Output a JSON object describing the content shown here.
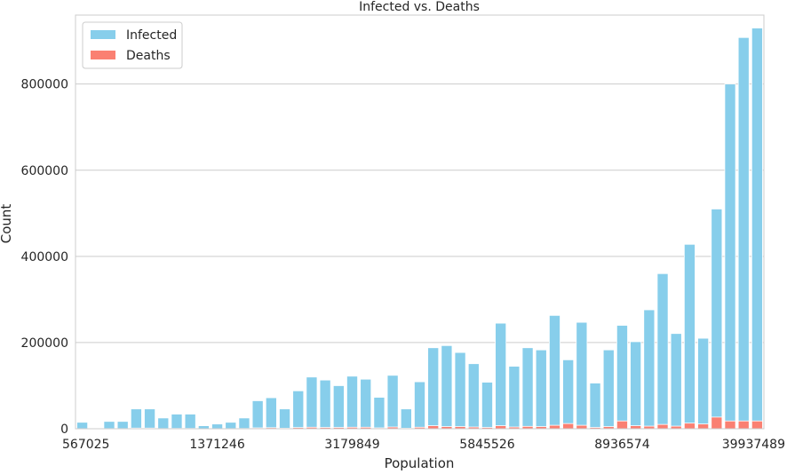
{
  "chart_data": {
    "type": "bar",
    "title": "Infected vs. Deaths",
    "xlabel": "Population",
    "ylabel": "Count",
    "ylim": [
      0,
      960000
    ],
    "yticks": [
      0,
      200000,
      400000,
      600000,
      800000
    ],
    "ytick_labels": [
      "0",
      "200000",
      "400000",
      "600000",
      "800000"
    ],
    "x_tick_labels": [
      {
        "index": 0,
        "label": "567025"
      },
      {
        "index": 10,
        "label": "1371246"
      },
      {
        "index": 20,
        "label": "3179849"
      },
      {
        "index": 30,
        "label": "5845526"
      },
      {
        "index": 40,
        "label": "8936574"
      },
      {
        "index": 50,
        "label": "39937489"
      }
    ],
    "grid": true,
    "legend": "top-left",
    "colors": {
      "infected": "#87CEEB",
      "deaths": "#FA8072"
    },
    "series": [
      {
        "name": "Infected",
        "values": [
          15000,
          0,
          17000,
          17000,
          46000,
          46000,
          25000,
          34000,
          34000,
          7000,
          11000,
          15000,
          25000,
          65000,
          72000,
          46000,
          88000,
          120000,
          113000,
          100000,
          122000,
          115000,
          73000,
          124000,
          46000,
          109000,
          188000,
          193000,
          177000,
          151000,
          108000,
          245000,
          145000,
          188000,
          183000,
          263000,
          160000,
          247000,
          106000,
          183000,
          240000,
          202000,
          276000,
          360000,
          221000,
          428000,
          210000,
          510000,
          800000,
          908000,
          930000
        ]
      },
      {
        "name": "Deaths",
        "values": [
          300,
          0,
          400,
          400,
          1500,
          1500,
          500,
          800,
          800,
          200,
          300,
          400,
          700,
          2000,
          2500,
          1200,
          2800,
          3500,
          3000,
          3000,
          3500,
          3500,
          2000,
          4000,
          1200,
          3500,
          7000,
          5000,
          5000,
          4000,
          3000,
          7000,
          4000,
          5500,
          5000,
          8000,
          12000,
          8000,
          3000,
          5000,
          18000,
          7000,
          6000,
          10000,
          6000,
          13000,
          11000,
          27000,
          18000,
          18000,
          18000
        ]
      }
    ]
  }
}
